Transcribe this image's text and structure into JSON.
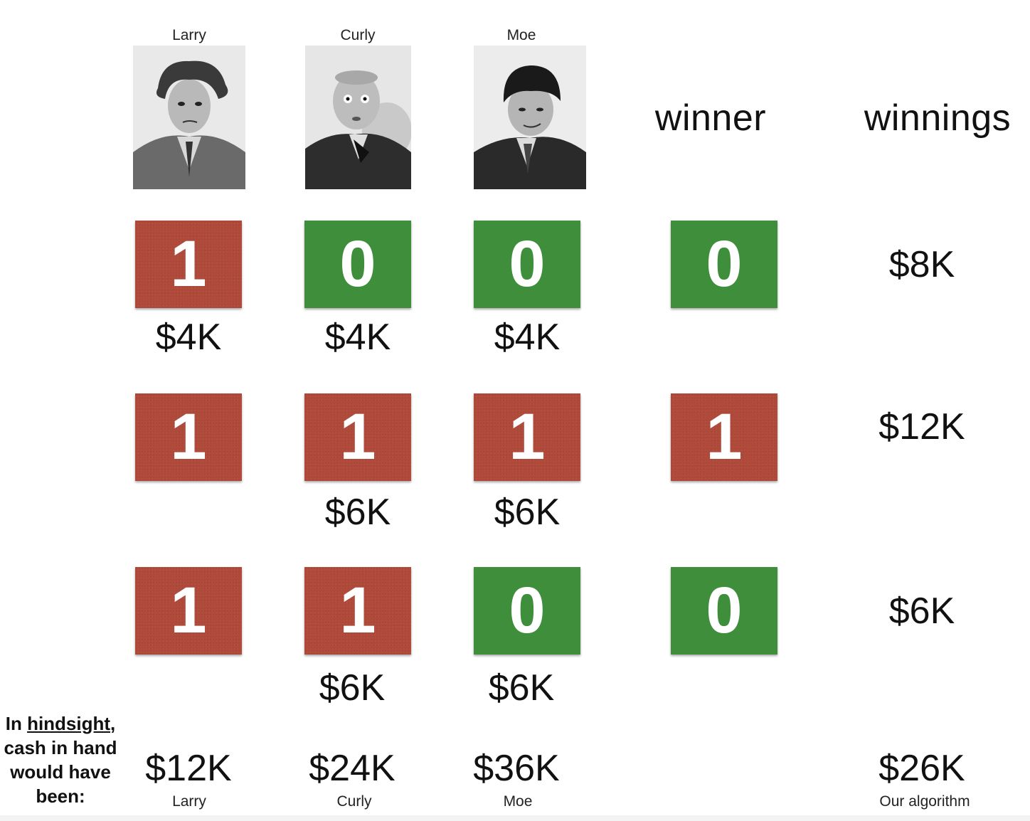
{
  "people": [
    {
      "name": "Larry"
    },
    {
      "name": "Curly"
    },
    {
      "name": "Moe"
    }
  ],
  "headers": {
    "winner": "winner",
    "winnings": "winnings"
  },
  "rounds": [
    {
      "predictions": [
        "1",
        "0",
        "0"
      ],
      "winner": "0",
      "winnings": "$8K",
      "bets": [
        "$4K",
        "$4K",
        "$4K"
      ]
    },
    {
      "predictions": [
        "1",
        "1",
        "1"
      ],
      "winner": "1",
      "winnings": "$12K",
      "bets": [
        "",
        "$6K",
        "$6K"
      ]
    },
    {
      "predictions": [
        "1",
        "1",
        "0"
      ],
      "winner": "0",
      "winnings": "$6K",
      "bets": [
        "",
        "$6K",
        "$6K"
      ]
    }
  ],
  "hindsight": {
    "line1_prefix": "In ",
    "line1_underlined": "hindsight",
    "line1_suffix": ",",
    "line2": "cash in hand",
    "line3": "would have",
    "line4": "been:"
  },
  "totals": {
    "values": [
      "$12K",
      "$24K",
      "$36K"
    ],
    "labels": [
      "Larry",
      "Curly",
      "Moe"
    ],
    "algorithm_value": "$26K",
    "algorithm_label": "Our algorithm"
  },
  "colors": {
    "one": "#b04a3a",
    "zero": "#3e8e3c"
  }
}
